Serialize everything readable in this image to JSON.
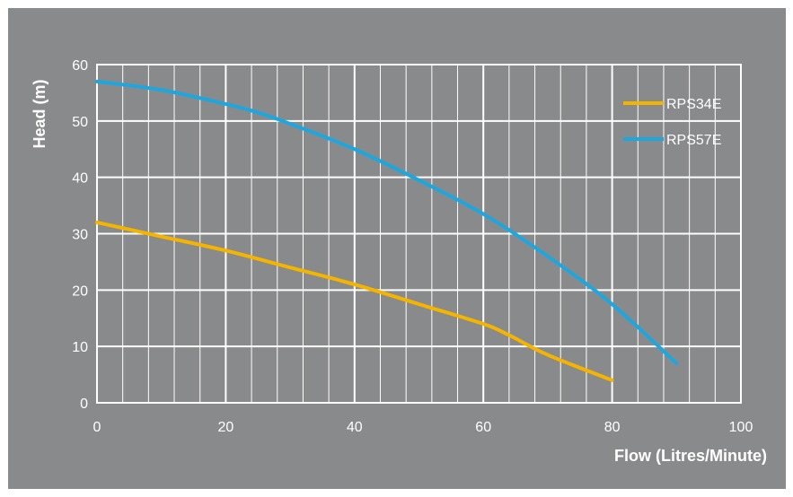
{
  "chart_data": {
    "type": "line",
    "title": "",
    "xlabel": "Flow (Litres/Minute)",
    "ylabel": "Head (m)",
    "xlim": [
      0,
      100
    ],
    "ylim": [
      0,
      60
    ],
    "x_ticks": [
      0,
      20,
      40,
      60,
      80,
      100
    ],
    "y_ticks": [
      0,
      10,
      20,
      30,
      40,
      50,
      60
    ],
    "x_tick_labels": [
      "0",
      "20",
      "40",
      "60",
      "80",
      "100"
    ],
    "y_tick_labels": [
      "0",
      "10",
      "20",
      "30",
      "40",
      "50",
      "60"
    ],
    "minor_x_step": 4,
    "grid": true,
    "legend_position": "top-right",
    "background_color": "#888a8c",
    "grid_color": "#ffffff",
    "series": [
      {
        "name": "RPS34E",
        "color": "#f5b400",
        "x": [
          0,
          10,
          20,
          30,
          40,
          50,
          60,
          64,
          70,
          80
        ],
        "y": [
          32,
          29.5,
          27,
          24,
          21,
          17.5,
          14,
          12,
          8.5,
          4
        ]
      },
      {
        "name": "RPS57E",
        "color": "#1ea7df",
        "x": [
          0,
          10,
          20,
          25,
          30,
          40,
          50,
          60,
          70,
          80,
          90
        ],
        "y": [
          57,
          55.5,
          53,
          51.5,
          49.5,
          45,
          39.5,
          33.5,
          26,
          17.5,
          7
        ]
      }
    ]
  }
}
